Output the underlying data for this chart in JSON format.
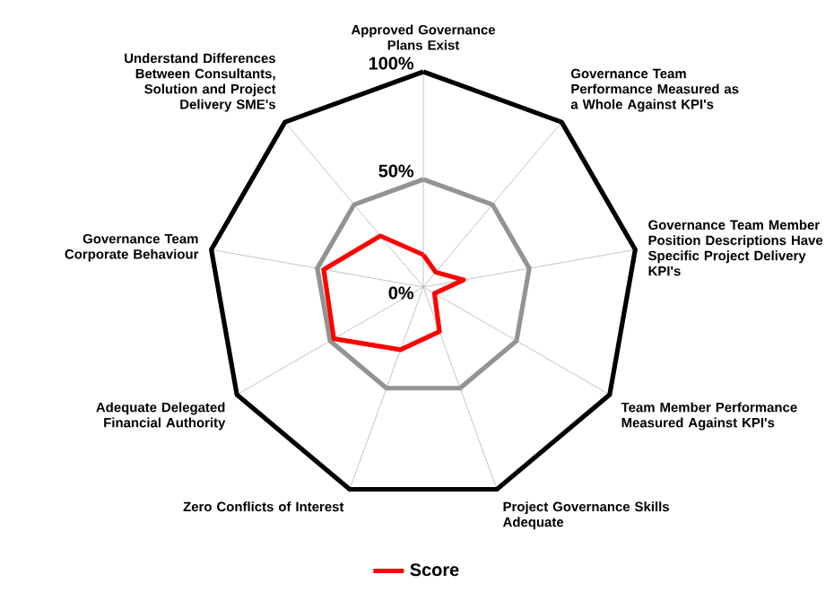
{
  "chart_data": {
    "type": "radar",
    "categories": [
      "Approved Governance Plans Exist",
      "Governance Team Performance Measured as a Whole Against KPI's",
      "Governance Team Member Position Descriptions Have Specific Project Delivery KPI's",
      "Team Member Performance Measured Against KPI's",
      "Project Governance Skills Adequate",
      "Zero Conflicts of Interest",
      "Adequate Delegated Financial Authority",
      "Governance Team Corporate Behaviour",
      "Understand Differences Between Consultants, Solution and Project Delivery SME's"
    ],
    "series": [
      {
        "name": "Score",
        "color": "#ff0000",
        "values": [
          15,
          9,
          19,
          6,
          22,
          31,
          48,
          47,
          31
        ]
      }
    ],
    "ylim": [
      0,
      100
    ],
    "yticks": [
      {
        "value": 0,
        "label": "0%"
      },
      {
        "value": 50,
        "label": "50%"
      },
      {
        "value": 100,
        "label": "100%"
      }
    ],
    "grid": true,
    "legend": "bottom",
    "marker": "none",
    "line_style": "solid"
  }
}
